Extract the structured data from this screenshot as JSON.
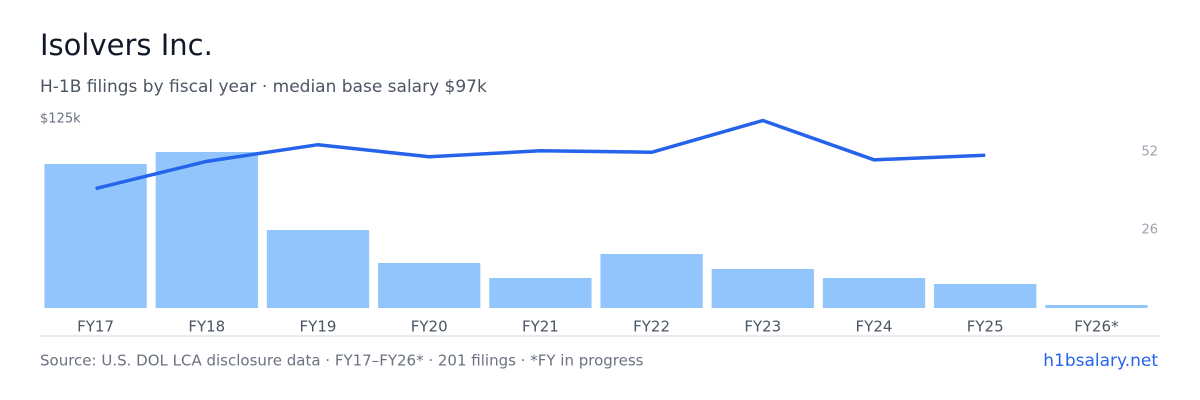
{
  "chart_data": {
    "type": "bar_line",
    "title": "Isolvers Inc.",
    "subtitle": "H-1B filings by fiscal year · median base salary $97k",
    "categories": [
      "FY17",
      "FY18",
      "FY19",
      "FY20",
      "FY21",
      "FY22",
      "FY23",
      "FY24",
      "FY25",
      "FY26*"
    ],
    "series": [
      {
        "name": "Filings",
        "type": "bar",
        "axis": "y2",
        "color": "#93c5fd",
        "values": [
          48,
          52,
          26,
          15,
          10,
          18,
          13,
          10,
          8,
          1
        ]
      },
      {
        "name": "Median base salary",
        "type": "line",
        "color": "#2563eb",
        "values": [
          79000,
          97000,
          108000,
          100000,
          104000,
          103000,
          124000,
          98000,
          101000,
          null
        ]
      }
    ],
    "ylim": [
      0,
      125000
    ],
    "yticks": [
      {
        "value": 125000,
        "label": "$125k"
      }
    ],
    "y2lim": [
      0,
      63
    ],
    "y2ticks": [
      26,
      52
    ],
    "footer": "Source: U.S. DOL LCA disclosure data · FY17–FY26* · 201 filings · *FY in progress",
    "brand": "h1bsalary.net"
  }
}
